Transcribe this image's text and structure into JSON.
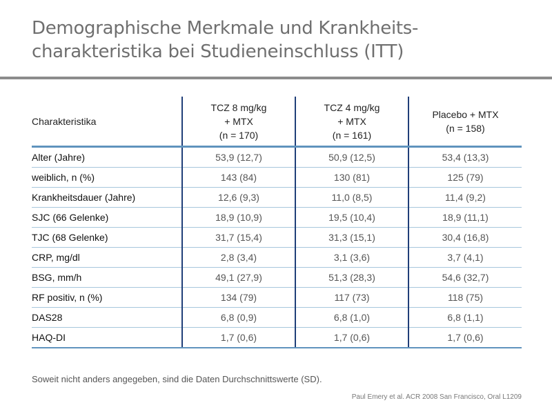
{
  "title": {
    "line1": "Demographische Merkmale und Krankheits-",
    "line2": "charakteristika bei Studieneinschluss (ITT)"
  },
  "table": {
    "headers": [
      {
        "lines": [
          "Charakteristika"
        ]
      },
      {
        "lines": [
          "TCZ 8 mg/kg",
          "+ MTX",
          "(n = 170)"
        ]
      },
      {
        "lines": [
          "TCZ 4 mg/kg",
          "+ MTX",
          "(n = 161)"
        ]
      },
      {
        "lines": [
          "Placebo + MTX",
          "(n = 158)"
        ]
      }
    ],
    "rows": [
      {
        "label": "Alter (Jahre)",
        "values": [
          "53,9 (12,7)",
          "50,9 (12,5)",
          "53,4 (13,3)"
        ]
      },
      {
        "label": "weiblich, n (%)",
        "values": [
          "143 (84)",
          "130 (81)",
          "125 (79)"
        ]
      },
      {
        "label": "Krankheitsdauer (Jahre)",
        "values": [
          "12,6 (9,3)",
          "11,0 (8,5)",
          "11,4 (9,2)"
        ]
      },
      {
        "label": "SJC (66 Gelenke)",
        "values": [
          "18,9 (10,9)",
          "19,5 (10,4)",
          "18,9 (11,1)"
        ]
      },
      {
        "label": "TJC (68 Gelenke)",
        "values": [
          "31,7 (15,4)",
          "31,3 (15,1)",
          "30,4 (16,8)"
        ]
      },
      {
        "label": "CRP, mg/dl",
        "values": [
          "2,8 (3,4)",
          "3,1 (3,6)",
          "3,7 (4,1)"
        ]
      },
      {
        "label": "BSG, mm/h",
        "values": [
          "49,1 (27,9)",
          "51,3 (28,3)",
          "54,6 (32,7)"
        ]
      },
      {
        "label": "RF positiv, n (%)",
        "values": [
          "134 (79)",
          "117 (73)",
          "118 (75)"
        ]
      },
      {
        "label": "DAS28",
        "values": [
          "6,8 (0,9)",
          "6,8 (1,0)",
          "6,8 (1,1)"
        ]
      },
      {
        "label": "HAQ-DI",
        "values": [
          "1,7 (0,6)",
          "1,7 (0,6)",
          "1,7 (0,6)"
        ]
      }
    ]
  },
  "footnote": "Soweit nicht anders angegeben, sind die Daten Durchschnittswerte (SD).",
  "source": "Paul Emery et al. ACR 2008 San Francisco, Oral L1209",
  "colors": {
    "title": "#6f6f6f",
    "rule": "#8c8c8c",
    "header_rule": "#5f93bd",
    "row_rule": "#a6c6dc",
    "column_separator": "#1f3e78"
  }
}
